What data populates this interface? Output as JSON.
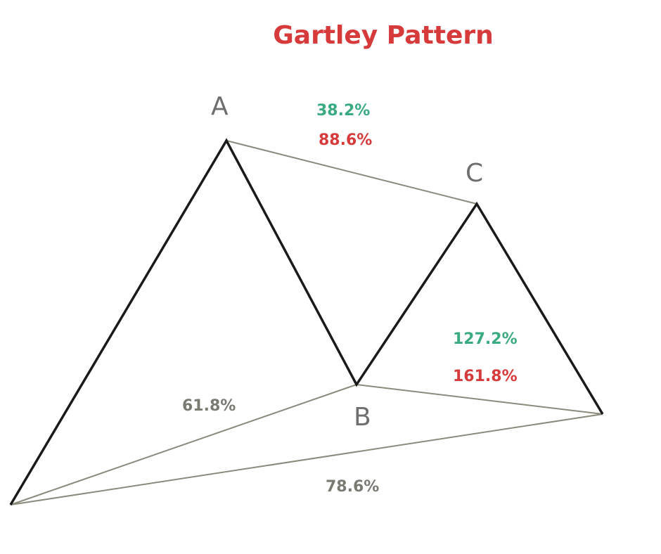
{
  "title": "Gartley Pattern",
  "points": {
    "A": "A",
    "B": "B",
    "C": "C"
  },
  "ratios": {
    "ac_retracement_low": "38.2%",
    "ac_retracement_high": "88.6%",
    "cd_extension_low": "127.2%",
    "cd_extension_high": "161.8%",
    "xb": "61.8%",
    "xd": "78.6%"
  },
  "colors": {
    "title": "#d63a3a",
    "green": "#3aaa80",
    "red": "#d63a3a",
    "grey": "#7a7a72",
    "leg": "#1a1a1a",
    "guide": "#8c8a7c"
  }
}
